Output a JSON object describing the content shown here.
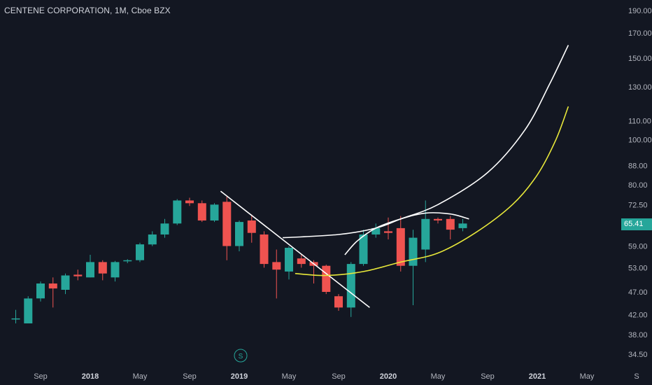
{
  "header": {
    "title": "CENTENE CORPORATION, 1M, Cboe BZX"
  },
  "price_tag": {
    "value": "65.41",
    "color": "#26a69a"
  },
  "event_marker": {
    "label": "S"
  },
  "colors": {
    "background": "#131722",
    "up": "#26a69a",
    "down": "#ef5350",
    "white_line": "#ffffff",
    "yellow_line": "#e8e83a"
  },
  "chart_data": {
    "type": "candlestick",
    "scale": "log",
    "ylim": [
      33,
      195
    ],
    "y_ticks": [
      "190.00",
      "170.00",
      "150.00",
      "130.00",
      "110.00",
      "100.00",
      "88.00",
      "80.00",
      "72.50",
      "65.41",
      "59.00",
      "53.00",
      "47.00",
      "42.00",
      "38.00",
      "34.50"
    ],
    "y_tick_values": [
      190,
      170,
      150,
      130,
      110,
      100,
      88,
      80,
      72.5,
      65.41,
      59,
      53,
      47,
      42,
      38,
      34.5
    ],
    "x_ticks": [
      {
        "label": "Sep",
        "bold": false,
        "i": 2
      },
      {
        "label": "2018",
        "bold": true,
        "i": 6
      },
      {
        "label": "May",
        "bold": false,
        "i": 10
      },
      {
        "label": "Sep",
        "bold": false,
        "i": 14
      },
      {
        "label": "2019",
        "bold": true,
        "i": 18
      },
      {
        "label": "May",
        "bold": false,
        "i": 22
      },
      {
        "label": "Sep",
        "bold": false,
        "i": 26
      },
      {
        "label": "2020",
        "bold": true,
        "i": 30
      },
      {
        "label": "May",
        "bold": false,
        "i": 34
      },
      {
        "label": "Sep",
        "bold": false,
        "i": 38
      },
      {
        "label": "2021",
        "bold": true,
        "i": 42
      },
      {
        "label": "May",
        "bold": false,
        "i": 46
      },
      {
        "label": "S",
        "bold": false,
        "i": 50
      }
    ],
    "candles": [
      {
        "o": 41.0,
        "h": 43.0,
        "l": 40.2,
        "c": 41.2
      },
      {
        "o": 40.2,
        "h": 46.0,
        "l": 40.2,
        "c": 45.5
      },
      {
        "o": 45.5,
        "h": 49.5,
        "l": 44.8,
        "c": 49.0
      },
      {
        "o": 49.0,
        "h": 50.5,
        "l": 43.5,
        "c": 47.8
      },
      {
        "o": 47.5,
        "h": 51.5,
        "l": 46.5,
        "c": 51.0
      },
      {
        "o": 51.2,
        "h": 52.5,
        "l": 49.8,
        "c": 50.8
      },
      {
        "o": 50.5,
        "h": 56.5,
        "l": 50.5,
        "c": 54.5
      },
      {
        "o": 54.5,
        "h": 55.0,
        "l": 49.8,
        "c": 51.5
      },
      {
        "o": 50.5,
        "h": 54.8,
        "l": 49.5,
        "c": 54.5
      },
      {
        "o": 55.0,
        "h": 55.3,
        "l": 54.2,
        "c": 55.0
      },
      {
        "o": 55.0,
        "h": 60.0,
        "l": 54.5,
        "c": 59.5
      },
      {
        "o": 59.5,
        "h": 63.5,
        "l": 59.0,
        "c": 62.5
      },
      {
        "o": 62.5,
        "h": 67.5,
        "l": 61.5,
        "c": 66.0
      },
      {
        "o": 66.0,
        "h": 74.5,
        "l": 65.5,
        "c": 74.0
      },
      {
        "o": 74.0,
        "h": 75.0,
        "l": 72.0,
        "c": 73.0
      },
      {
        "o": 73.0,
        "h": 74.0,
        "l": 66.5,
        "c": 67.0
      },
      {
        "o": 67.0,
        "h": 73.0,
        "l": 66.5,
        "c": 72.5
      },
      {
        "o": 73.5,
        "h": 75.5,
        "l": 55.0,
        "c": 59.0
      },
      {
        "o": 59.0,
        "h": 67.0,
        "l": 57.5,
        "c": 66.5
      },
      {
        "o": 67.0,
        "h": 69.0,
        "l": 60.0,
        "c": 63.0
      },
      {
        "o": 62.5,
        "h": 63.5,
        "l": 53.0,
        "c": 54.0
      },
      {
        "o": 54.5,
        "h": 58.0,
        "l": 45.5,
        "c": 52.5
      },
      {
        "o": 52.0,
        "h": 59.0,
        "l": 50.0,
        "c": 58.5
      },
      {
        "o": 55.5,
        "h": 56.5,
        "l": 53.0,
        "c": 54.0
      },
      {
        "o": 54.5,
        "h": 55.0,
        "l": 49.0,
        "c": 53.5
      },
      {
        "o": 53.5,
        "h": 53.8,
        "l": 46.5,
        "c": 47.0
      },
      {
        "o": 46.0,
        "h": 46.5,
        "l": 42.8,
        "c": 43.5
      },
      {
        "o": 43.5,
        "h": 54.5,
        "l": 41.5,
        "c": 54.0
      },
      {
        "o": 54.0,
        "h": 64.0,
        "l": 53.5,
        "c": 62.5
      },
      {
        "o": 62.5,
        "h": 66.0,
        "l": 61.5,
        "c": 64.5
      },
      {
        "o": 63.5,
        "h": 68.0,
        "l": 61.0,
        "c": 63.0
      },
      {
        "o": 64.5,
        "h": 68.5,
        "l": 52.0,
        "c": 53.5
      },
      {
        "o": 53.5,
        "h": 64.0,
        "l": 44.0,
        "c": 61.5
      },
      {
        "o": 58.0,
        "h": 74.0,
        "l": 54.5,
        "c": 67.5
      },
      {
        "o": 67.5,
        "h": 68.0,
        "l": 66.0,
        "c": 67.0
      },
      {
        "o": 67.5,
        "h": 68.5,
        "l": 61.0,
        "c": 64.0
      },
      {
        "o": 64.5,
        "h": 67.5,
        "l": 63.5,
        "c": 66.0
      }
    ],
    "trendlines": [
      {
        "name": "falling trendline",
        "color": "#ffffff",
        "points": [
          [
            16.5,
            77.5
          ],
          [
            28.5,
            43.5
          ]
        ]
      }
    ],
    "curves": [
      {
        "name": "upper white curve",
        "color": "#ffffff",
        "points": [
          [
            21.5,
            61.5
          ],
          [
            26,
            62.5
          ],
          [
            29,
            64.5
          ],
          [
            31,
            67.5
          ],
          [
            34,
            72.5
          ],
          [
            38,
            85
          ],
          [
            41,
            105
          ],
          [
            43,
            132
          ],
          [
            44.5,
            160
          ]
        ]
      },
      {
        "name": "inner white arc",
        "color": "#ffffff",
        "points": [
          [
            26.5,
            56.5
          ],
          [
            27.5,
            60.5
          ],
          [
            29,
            64.5
          ],
          [
            31,
            67.5
          ],
          [
            33,
            69.5
          ],
          [
            35,
            69.2
          ],
          [
            36.5,
            67.5
          ]
        ]
      },
      {
        "name": "yellow curve",
        "color": "#e8e83a",
        "points": [
          [
            22.5,
            51.5
          ],
          [
            25,
            51.0
          ],
          [
            28,
            52.0
          ],
          [
            31,
            54.5
          ],
          [
            34,
            57.0
          ],
          [
            37,
            63.0
          ],
          [
            40,
            72.5
          ],
          [
            42,
            84
          ],
          [
            43.5,
            100
          ],
          [
            44.5,
            118
          ]
        ]
      }
    ]
  }
}
